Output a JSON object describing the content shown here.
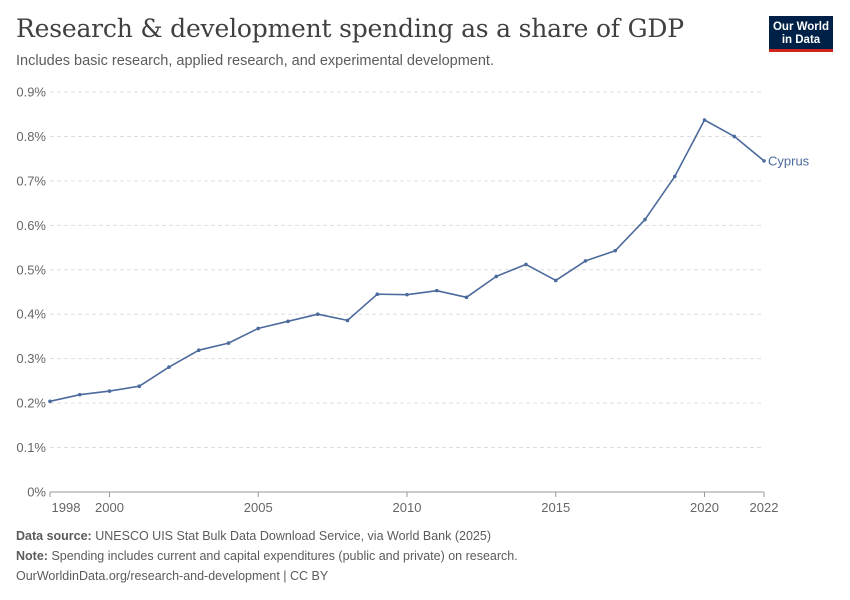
{
  "header": {
    "title": "Research & development spending as a share of GDP",
    "subtitle": "Includes basic research, applied research, and experimental development."
  },
  "logo": {
    "line1": "Our World",
    "line2": "in Data",
    "bg_color": "#002147",
    "accent_color": "#ce261e"
  },
  "chart_data": {
    "type": "line",
    "title": "Research & development spending as a share of GDP",
    "subtitle": "Includes basic research, applied research, and experimental development.",
    "x_tick_labels": [
      "1998",
      "2000",
      "2005",
      "2010",
      "2015",
      "2020",
      "2022"
    ],
    "x_ticks": [
      1998,
      2000,
      2005,
      2010,
      2015,
      2020,
      2022
    ],
    "y_tick_labels": [
      "0%",
      "0.1%",
      "0.2%",
      "0.3%",
      "0.4%",
      "0.5%",
      "0.6%",
      "0.7%",
      "0.8%",
      "0.9%"
    ],
    "y_ticks": [
      0,
      0.1,
      0.2,
      0.3,
      0.4,
      0.5,
      0.6,
      0.7,
      0.8,
      0.9
    ],
    "xlim": [
      1998,
      2022
    ],
    "ylim": [
      0,
      0.9
    ],
    "grid": "horizontal dashed",
    "series": [
      {
        "name": "Cyprus",
        "color": "#4c6a9c",
        "x": [
          1998,
          1999,
          2000,
          2001,
          2002,
          2003,
          2004,
          2005,
          2006,
          2007,
          2008,
          2009,
          2010,
          2011,
          2012,
          2013,
          2014,
          2015,
          2016,
          2017,
          2018,
          2019,
          2020,
          2021,
          2022
        ],
        "y": [
          0.204,
          0.219,
          0.227,
          0.238,
          0.281,
          0.319,
          0.335,
          0.368,
          0.384,
          0.4,
          0.386,
          0.445,
          0.444,
          0.453,
          0.438,
          0.485,
          0.512,
          0.476,
          0.52,
          0.543,
          0.613,
          0.71,
          0.837,
          0.8,
          0.745
        ]
      }
    ]
  },
  "footer": {
    "source_label": "Data source:",
    "source_text": "UNESCO UIS Stat Bulk Data Download Service, via World Bank (2025)",
    "note_label": "Note:",
    "note_text": "Spending includes current and capital expenditures (public and private) on research.",
    "url": "OurWorldinData.org/research-and-development | CC BY"
  }
}
